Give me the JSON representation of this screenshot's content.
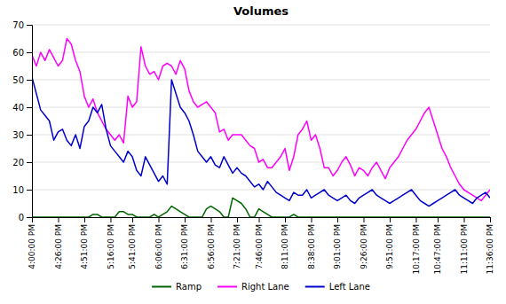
{
  "chart_data": {
    "type": "line",
    "title": "Volumes",
    "categories": [
      "4:00:00 PM",
      null,
      null,
      null,
      null,
      null,
      "4:26:00 PM",
      null,
      null,
      null,
      null,
      null,
      "4:51:00 PM",
      null,
      null,
      null,
      null,
      null,
      "5:16:00 PM",
      null,
      null,
      null,
      null,
      "5:41:00 PM",
      null,
      null,
      null,
      null,
      null,
      "6:06:00 PM",
      null,
      null,
      null,
      null,
      null,
      "6:31:00 PM",
      null,
      null,
      null,
      null,
      null,
      "6:56:00 PM",
      null,
      null,
      null,
      null,
      null,
      "7:21:00 PM",
      null,
      null,
      null,
      null,
      "7:46:00 PM",
      null,
      null,
      null,
      null,
      null,
      "8:11:00 PM",
      null,
      null,
      null,
      null,
      null,
      "8:38:00 PM",
      null,
      null,
      null,
      null,
      null,
      "9:01:00 PM",
      null,
      null,
      null,
      null,
      null,
      "9:26:00 PM",
      null,
      null,
      null,
      null,
      null,
      "9:51:00 PM",
      null,
      null,
      null,
      null,
      null,
      "10:17:00 PM",
      null,
      null,
      null,
      null,
      "10:47:00 PM",
      null,
      null,
      null,
      null,
      null,
      "11:11:00 PM",
      null,
      null,
      null,
      null,
      null,
      "11:36:00 PM"
    ],
    "series": [
      {
        "name": "Ramp",
        "color": "#006400",
        "values": [
          0,
          0,
          0,
          0,
          0,
          0,
          0,
          0,
          0,
          0,
          0,
          0,
          0,
          0,
          1,
          1,
          0,
          0,
          0,
          0,
          2,
          2,
          1,
          1,
          0,
          0,
          0,
          0,
          1,
          0,
          1,
          2,
          4,
          3,
          2,
          1,
          0,
          0,
          0,
          0,
          3,
          4,
          3,
          2,
          0,
          0,
          7,
          6,
          5,
          3,
          0,
          0,
          3,
          2,
          1,
          0,
          0,
          0,
          0,
          0,
          1,
          0,
          0,
          0,
          0,
          0,
          0,
          0,
          0,
          0,
          0,
          0,
          0,
          0,
          0,
          0,
          0,
          0,
          0,
          0,
          0,
          0,
          0,
          0,
          0,
          0,
          0,
          0,
          0,
          0,
          0,
          0,
          0,
          0,
          0,
          0,
          0,
          0,
          0,
          0,
          0,
          0,
          0,
          0,
          0,
          0
        ]
      },
      {
        "name": "Right Lane",
        "color": "#ff00ff",
        "values": [
          59,
          55,
          60,
          57,
          61,
          58,
          55,
          57,
          65,
          63,
          57,
          53,
          44,
          40,
          43,
          38,
          35,
          32,
          30,
          28,
          30,
          27,
          44,
          40,
          42,
          62,
          55,
          52,
          53,
          50,
          55,
          56,
          55,
          52,
          57,
          54,
          46,
          42,
          40,
          41,
          42,
          40,
          38,
          31,
          32,
          28,
          30,
          30,
          30,
          28,
          26,
          25,
          20,
          21,
          18,
          18,
          20,
          22,
          25,
          17,
          22,
          30,
          32,
          35,
          28,
          30,
          25,
          18,
          18,
          15,
          17,
          20,
          22,
          19,
          15,
          18,
          17,
          15,
          18,
          20,
          17,
          14,
          18,
          20,
          22,
          25,
          28,
          30,
          32,
          35,
          38,
          40,
          35,
          30,
          25,
          22,
          18,
          15,
          12,
          10,
          9,
          8,
          7,
          6,
          8,
          10
        ]
      },
      {
        "name": "Left Lane",
        "color": "#0000cd",
        "values": [
          51,
          45,
          39,
          37,
          35,
          28,
          31,
          32,
          28,
          26,
          30,
          25,
          33,
          35,
          40,
          38,
          41,
          32,
          26,
          24,
          22,
          20,
          24,
          22,
          17,
          15,
          22,
          19,
          16,
          13,
          15,
          12,
          50,
          45,
          40,
          38,
          35,
          30,
          24,
          22,
          20,
          22,
          19,
          18,
          22,
          19,
          16,
          18,
          16,
          15,
          13,
          11,
          12,
          10,
          13,
          11,
          9,
          8,
          7,
          6,
          9,
          8,
          8,
          10,
          7,
          8,
          9,
          10,
          8,
          7,
          6,
          7,
          8,
          6,
          5,
          7,
          8,
          9,
          10,
          8,
          7,
          6,
          5,
          6,
          7,
          8,
          9,
          10,
          8,
          6,
          5,
          4,
          5,
          6,
          7,
          8,
          9,
          10,
          8,
          7,
          6,
          5,
          7,
          8,
          9,
          7
        ]
      }
    ],
    "ylim": [
      0,
      70
    ],
    "yticks": [
      0,
      10,
      20,
      30,
      40,
      50,
      60,
      70
    ],
    "grid": true,
    "legend": "bottom"
  }
}
